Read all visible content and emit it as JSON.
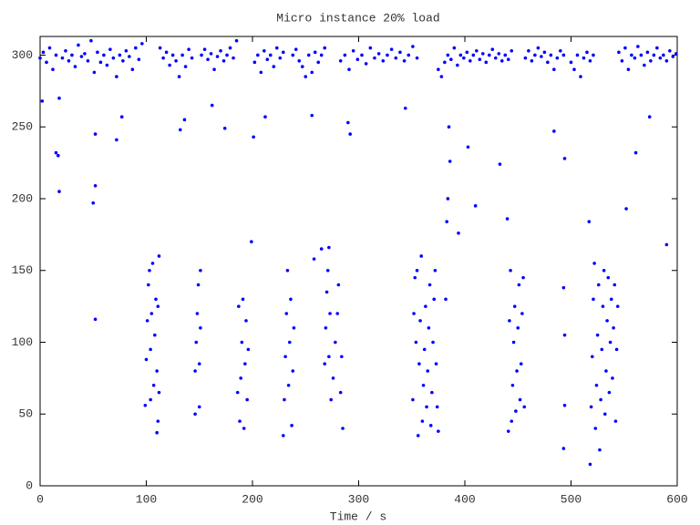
{
  "chart_data": {
    "type": "scatter",
    "title": "Micro instance 20% load",
    "x_label": "Time / s",
    "color": "#0000ff",
    "xlim": [
      0,
      600
    ],
    "xticks": [
      0,
      100,
      200,
      300,
      400,
      500,
      600
    ],
    "ylim": [
      0,
      313
    ],
    "yticks": [
      0,
      50,
      100,
      150,
      200,
      250,
      300
    ],
    "x": [
      0,
      3,
      6,
      9,
      12,
      15,
      18,
      21,
      24,
      27,
      30,
      33,
      36,
      39,
      42,
      45,
      48,
      51,
      54,
      57,
      60,
      63,
      66,
      69,
      72,
      75,
      78,
      81,
      84,
      87,
      90,
      93,
      96,
      2,
      15,
      18,
      17,
      52,
      50,
      52,
      52,
      72,
      77,
      113,
      116,
      119,
      122,
      125,
      128,
      131,
      134,
      137,
      140,
      143,
      132,
      136,
      152,
      155,
      158,
      161,
      164,
      167,
      170,
      173,
      176,
      179,
      182,
      185,
      162,
      174,
      202,
      205,
      208,
      211,
      214,
      217,
      220,
      223,
      226,
      229,
      201,
      212,
      238,
      241,
      244,
      247,
      250,
      253,
      256,
      259,
      262,
      265,
      268,
      256,
      283,
      287,
      291,
      295,
      299,
      303,
      307,
      311,
      315,
      319,
      323,
      327,
      331,
      335,
      339,
      343,
      347,
      351,
      355,
      292,
      290,
      344,
      375,
      378,
      381,
      384,
      387,
      390,
      393,
      396,
      399,
      402,
      405,
      408,
      411,
      414,
      417,
      420,
      423,
      426,
      429,
      432,
      435,
      438,
      441,
      444,
      385,
      386,
      384,
      383,
      394,
      403,
      410,
      433,
      440,
      457,
      460,
      463,
      466,
      469,
      472,
      475,
      478,
      481,
      484,
      487,
      490,
      493,
      494,
      484,
      500,
      503,
      506,
      509,
      512,
      515,
      518,
      521,
      517,
      545,
      548,
      551,
      554,
      557,
      560,
      563,
      566,
      569,
      572,
      575,
      578,
      581,
      584,
      587,
      590,
      593,
      596,
      599,
      552,
      561,
      590,
      574,
      99,
      100,
      101,
      102,
      103,
      104,
      104,
      105,
      106,
      107,
      108,
      109,
      110,
      110,
      111,
      111,
      112,
      112,
      146,
      146,
      147,
      148,
      149,
      150,
      150,
      151,
      151,
      186,
      187,
      188,
      189,
      190,
      191,
      192,
      193,
      194,
      195,
      196,
      199,
      229,
      230,
      231,
      232,
      233,
      234,
      235,
      236,
      237,
      238,
      239,
      258,
      272,
      265,
      268,
      269,
      270,
      271,
      272,
      273,
      274,
      276,
      278,
      280,
      281,
      283,
      284,
      285,
      351,
      352,
      353,
      354,
      355,
      356,
      357,
      358,
      359,
      360,
      361,
      362,
      363,
      364,
      365,
      366,
      367,
      368,
      369,
      370,
      371,
      372,
      373,
      374,
      375,
      382,
      441,
      442,
      443,
      444,
      445,
      446,
      447,
      448,
      449,
      450,
      451,
      452,
      453,
      454,
      455,
      456,
      493,
      494,
      494,
      493,
      518,
      519,
      520,
      521,
      522,
      523,
      524,
      525,
      526,
      527,
      528,
      529,
      530,
      531,
      532,
      533,
      534,
      535,
      536,
      537,
      538,
      539,
      540,
      541,
      542,
      543,
      544
    ],
    "values": [
      298,
      302,
      295,
      305,
      290,
      300,
      270,
      298,
      303,
      296,
      300,
      292,
      307,
      299,
      301,
      296,
      310,
      288,
      302,
      295,
      300,
      293,
      304,
      298,
      285,
      300,
      296,
      303,
      299,
      290,
      305,
      297,
      308,
      268,
      232,
      205,
      230,
      245,
      197,
      209,
      116,
      241,
      257,
      305,
      298,
      302,
      293,
      300,
      296,
      285,
      300,
      292,
      304,
      298,
      248,
      255,
      300,
      304,
      297,
      301,
      290,
      299,
      303,
      296,
      300,
      305,
      298,
      310,
      265,
      249,
      295,
      300,
      288,
      303,
      297,
      300,
      292,
      305,
      298,
      302,
      243,
      257,
      300,
      304,
      296,
      292,
      285,
      300,
      288,
      302,
      295,
      300,
      305,
      258,
      296,
      300,
      290,
      303,
      297,
      300,
      294,
      305,
      298,
      301,
      296,
      300,
      304,
      298,
      302,
      296,
      300,
      306,
      298,
      245,
      253,
      263,
      290,
      285,
      295,
      300,
      297,
      305,
      293,
      300,
      298,
      302,
      296,
      300,
      303,
      297,
      301,
      295,
      300,
      304,
      298,
      301,
      296,
      300,
      297,
      303,
      250,
      226,
      200,
      184,
      176,
      236,
      195,
      224,
      186,
      298,
      303,
      296,
      300,
      305,
      299,
      302,
      295,
      300,
      290,
      298,
      303,
      300,
      228,
      247,
      295,
      290,
      300,
      285,
      298,
      302,
      296,
      300,
      184,
      302,
      296,
      305,
      290,
      300,
      298,
      306,
      300,
      293,
      302,
      296,
      300,
      305,
      298,
      300,
      296,
      303,
      299,
      301,
      193,
      232,
      168,
      257,
      56,
      88,
      115,
      140,
      150,
      60,
      95,
      120,
      155,
      70,
      105,
      130,
      37,
      80,
      45,
      125,
      65,
      160,
      50,
      80,
      100,
      120,
      140,
      55,
      85,
      110,
      150,
      65,
      125,
      45,
      75,
      100,
      130,
      40,
      85,
      115,
      60,
      95,
      170,
      35,
      60,
      90,
      120,
      150,
      70,
      100,
      130,
      42,
      80,
      110,
      158,
      166,
      165,
      85,
      110,
      135,
      150,
      90,
      120,
      60,
      75,
      100,
      120,
      140,
      65,
      90,
      40,
      60,
      120,
      145,
      100,
      150,
      35,
      85,
      115,
      160,
      45,
      70,
      95,
      125,
      55,
      80,
      110,
      140,
      42,
      65,
      100,
      130,
      150,
      85,
      55,
      38,
      130,
      38,
      115,
      150,
      45,
      70,
      100,
      125,
      52,
      80,
      110,
      140,
      60,
      85,
      120,
      145,
      55,
      138,
      105,
      56,
      26,
      15,
      55,
      90,
      130,
      155,
      40,
      70,
      105,
      140,
      25,
      60,
      95,
      125,
      150,
      50,
      80,
      115,
      145,
      65,
      100,
      130,
      75,
      110,
      140,
      45,
      95,
      125
    ]
  }
}
